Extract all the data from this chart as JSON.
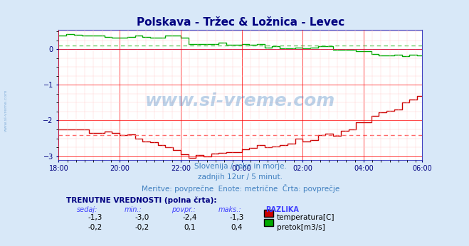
{
  "title": "Polskava - Tržec & Ložnica - Levec",
  "title_color": "#000080",
  "bg_color": "#d8e8f8",
  "plot_bg_color": "#ffffff",
  "grid_color_major": "#ff0000",
  "grid_color_minor": "#ffcccc",
  "xlabel_times": [
    "18:00",
    "20:00",
    "22:00",
    "00:00",
    "02:00",
    "04:00",
    "06:00"
  ],
  "ylim": [
    -3.1,
    0.55
  ],
  "yticks": [
    -3,
    -2,
    -1,
    0
  ],
  "subtitle1": "Slovenija / reke in morje.",
  "subtitle2": "zadnjih 12ur / 5 minut.",
  "subtitle3": "Meritve: povprečne  Enote: metrične  Črta: povprečje",
  "subtitle_color": "#4080c0",
  "watermark": "www.si-vreme.com",
  "watermark_color": "#4080c0",
  "watermark_alpha": 0.35,
  "table_header": "TRENUTNE VREDNOSTI (polna črta):",
  "table_col1": "sedaj:",
  "table_col2": "min.:",
  "table_col3": "povpr.:",
  "table_col4": "maks.:",
  "table_col5": "RAZLIKA",
  "row1": [
    "-1,3",
    "-3,0",
    "-2,4",
    "-1,3"
  ],
  "row2": [
    "-0,2",
    "-0,2",
    "0,1",
    "0,4"
  ],
  "label1": "temperatura[C]",
  "label2": "pretok[m3/s]",
  "color_temp": "#cc0000",
  "color_flow": "#00aa00",
  "color_avg_temp": "#ff6666",
  "color_avg_flow": "#66cc66",
  "axis_color": "#4040c0",
  "tick_color": "#000080"
}
